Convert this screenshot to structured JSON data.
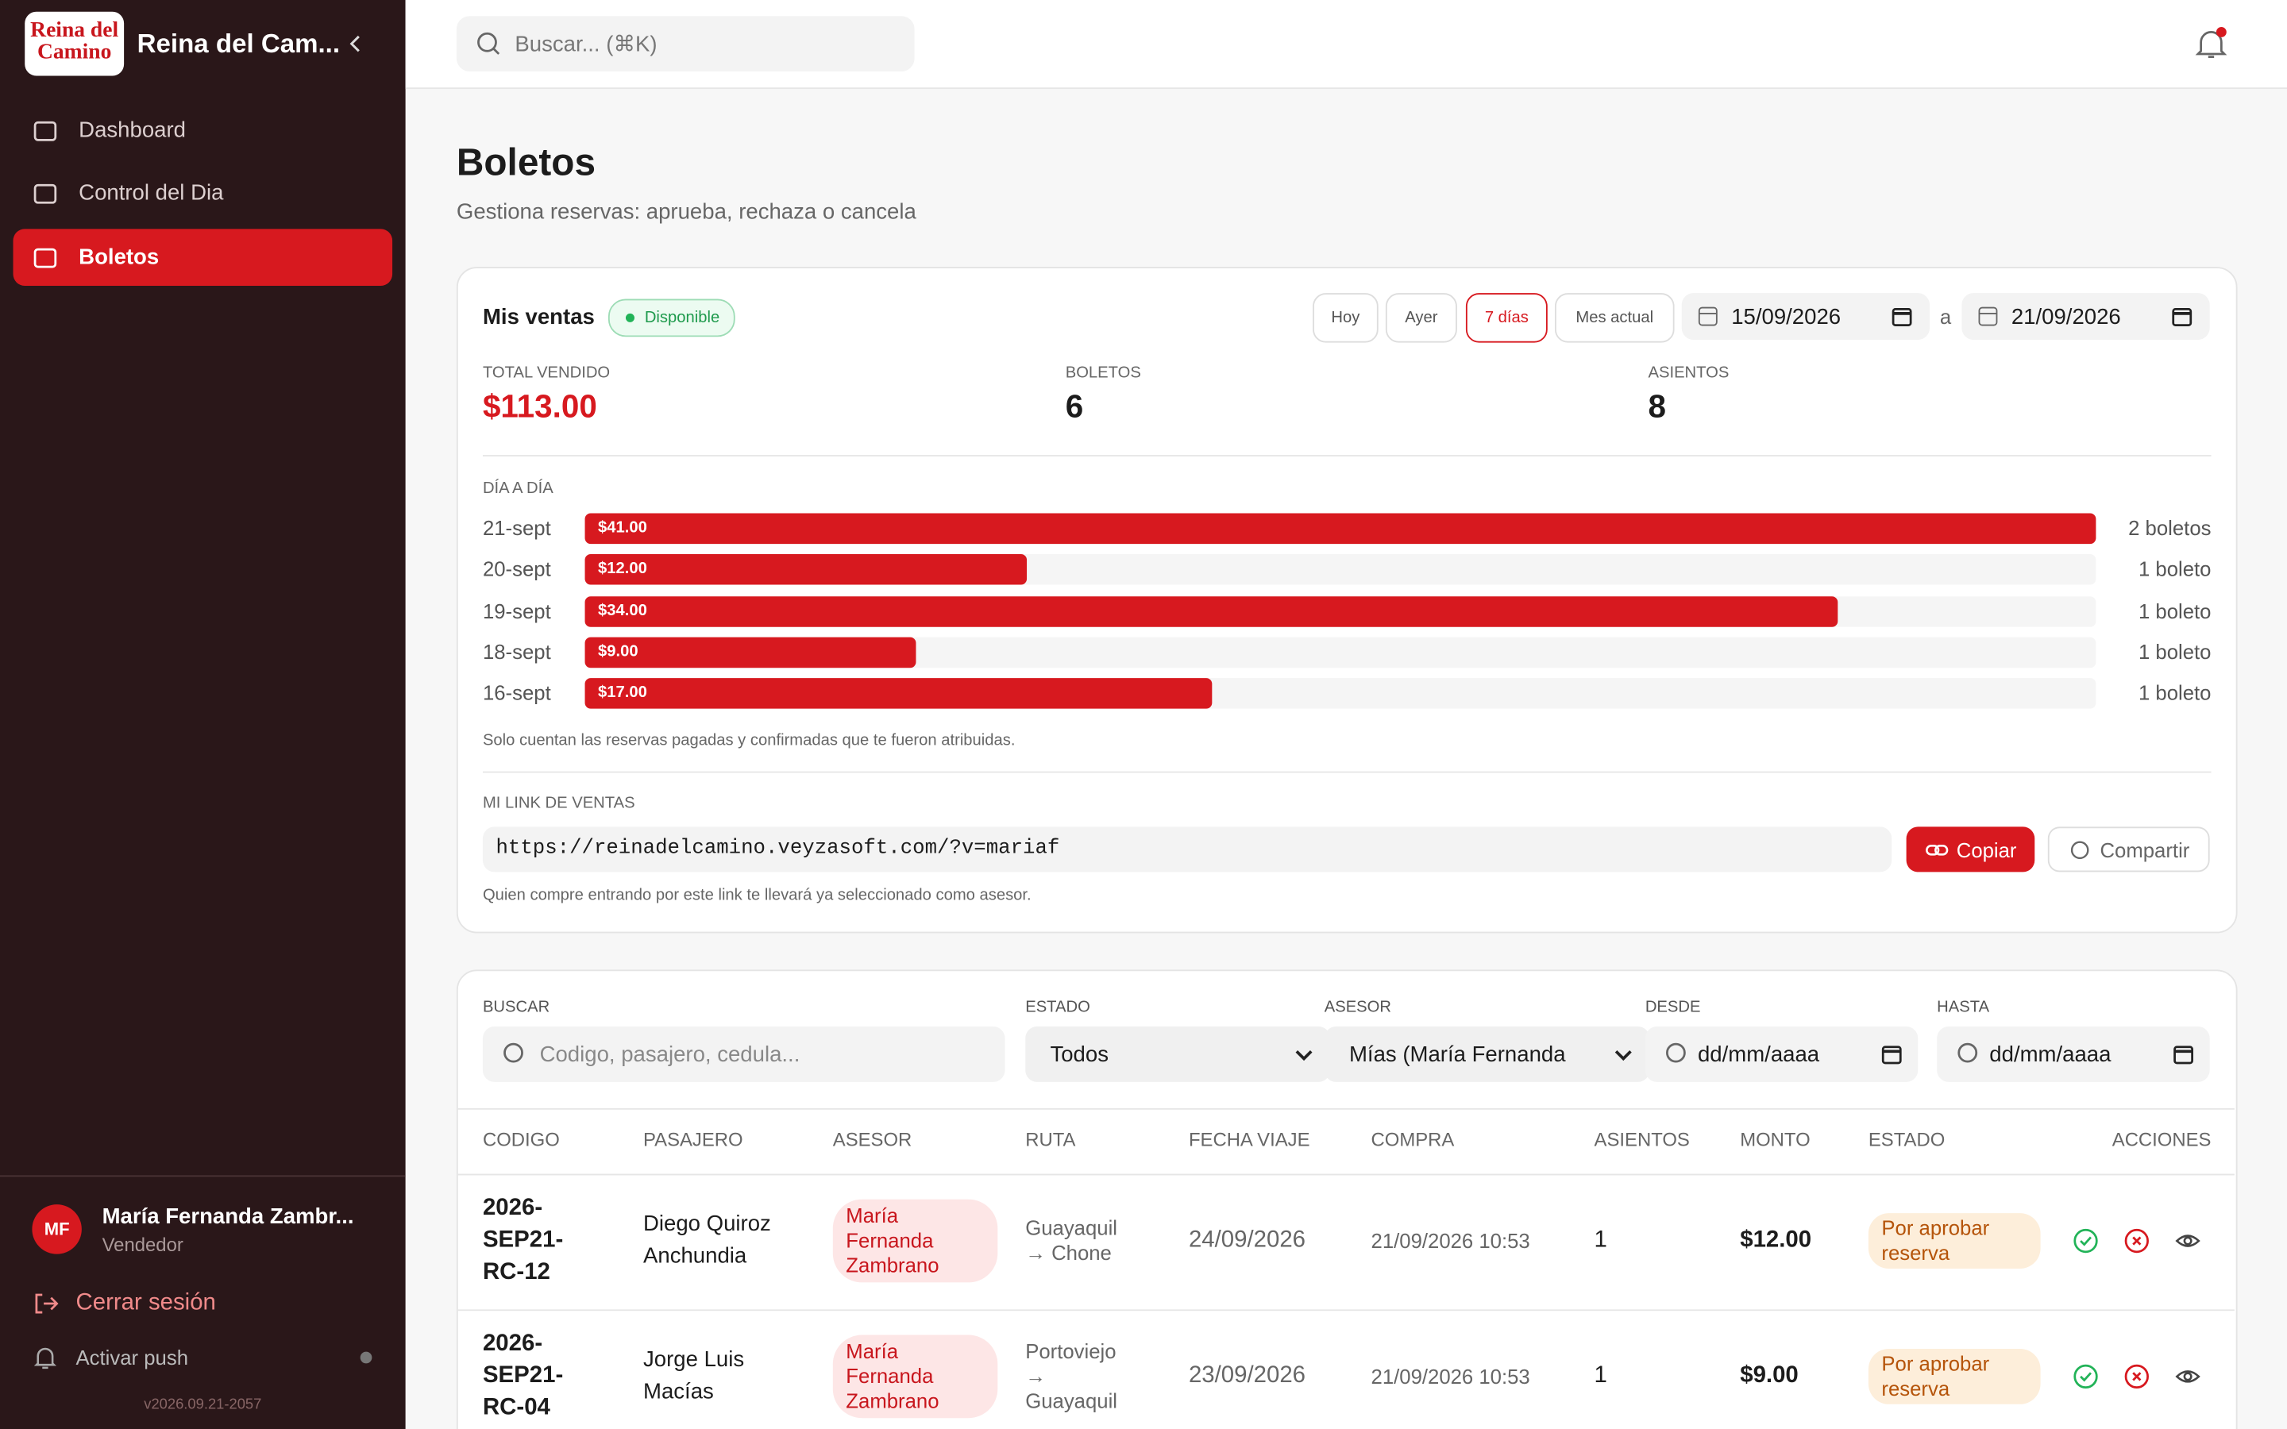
{
  "sidebar": {
    "logo": [
      "Reina del",
      "Camino"
    ],
    "brand": "Reina del Cam...",
    "nav": [
      "Dashboard",
      "Control del Dia",
      "Boletos"
    ],
    "user": {
      "initials": "MF",
      "name": "María Fernanda Zambr...",
      "role": "Vendedor"
    },
    "logout": "Cerrar sesión",
    "push": "Activar push",
    "version": "v2026.09.21-2057"
  },
  "header": {
    "search_placeholder": "Buscar... (⌘K)"
  },
  "page": {
    "title": "Boletos",
    "subtitle": "Gestiona reservas: aprueba, rechaza o cancela"
  },
  "sales": {
    "title": "Mis ventas",
    "status": "Disponible",
    "ranges": [
      "Hoy",
      "Ayer",
      "7 días",
      "Mes actual"
    ],
    "date_from": "15/09/2026",
    "date_sep": "a",
    "date_to": "21/09/2026",
    "stats": [
      {
        "label": "TOTAL VENDIDO",
        "value": "$113.00"
      },
      {
        "label": "BOLETOS",
        "value": "6"
      },
      {
        "label": "ASIENTOS",
        "value": "8"
      }
    ],
    "daily": {
      "title": "DÍA A DÍA",
      "categories": [
        "21-sept",
        "20-sept",
        "19-sept",
        "18-sept",
        "16-sept"
      ],
      "values": [
        41,
        12,
        34,
        9,
        17
      ],
      "value_labels": [
        "$41.00",
        "$12.00",
        "$34.00",
        "$9.00",
        "$17.00"
      ],
      "counts": [
        "2 boletos",
        "1 boleto",
        "1 boleto",
        "1 boleto",
        "1 boleto"
      ],
      "color": "#d7191f",
      "note": "Solo cuentan las reservas pagadas y confirmadas que te fueron atribuidas."
    },
    "link": {
      "title": "MI LINK DE VENTAS",
      "url": "https://reinadelcamino.veyzasoft.com/?v=mariaf",
      "copy": "Copiar",
      "share": "Compartir",
      "note": "Quien compre entrando por este link te llevará ya seleccionado como asesor."
    }
  },
  "filters": [
    {
      "label": "BUSCAR",
      "value": "Codigo, pasajero, cedula..."
    },
    {
      "label": "ESTADO",
      "value": "Todos"
    },
    {
      "label": "ASESOR",
      "value": "Mías (María Fernanda"
    },
    {
      "label": "DESDE",
      "value": "dd/mm/aaaa"
    },
    {
      "label": "HASTA",
      "value": "dd/mm/aaaa"
    }
  ],
  "table": {
    "columns": [
      "CODIGO",
      "PASAJERO",
      "ASESOR",
      "RUTA",
      "FECHA VIAJE",
      "COMPRA",
      "ASIENTOS",
      "MONTO",
      "ESTADO",
      "ACCIONES"
    ],
    "rows": [
      [
        "2026-SEP21-RC-12",
        "Diego Quiroz Anchundia",
        "María Fernanda Zambrano",
        "Guayaquil → Chone",
        "24/09/2026",
        "21/09/2026 10:53",
        "1",
        "$12.00",
        "Por aprobar reserva"
      ],
      [
        "2026-SEP21-RC-04",
        "Jorge Luis Macías",
        "María Fernanda Zambrano",
        "Portoviejo → Guayaquil",
        "23/09/2026",
        "21/09/2026 10:53",
        "1",
        "$9.00",
        "Por aprobar reserva"
      ]
    ]
  }
}
